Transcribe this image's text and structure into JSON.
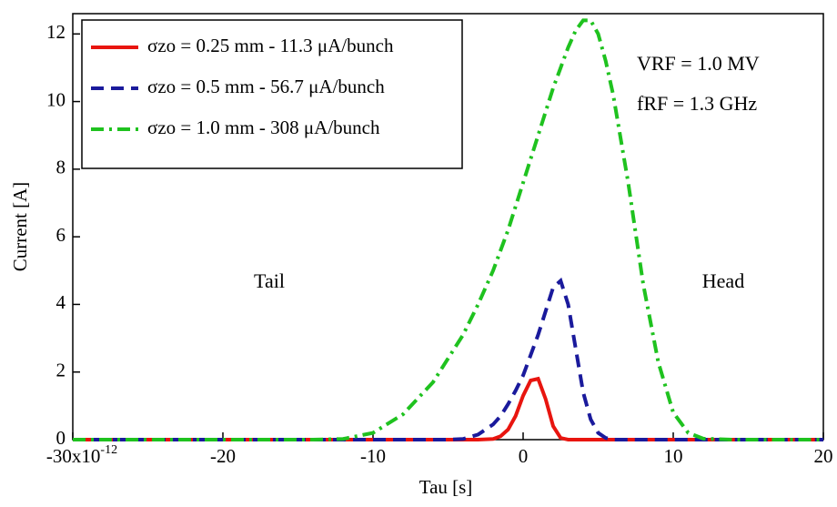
{
  "chart_data": {
    "type": "line",
    "xlabel": "Tau [s]",
    "ylabel": "Current [A]",
    "x": [
      -30,
      -14,
      -12,
      -10,
      -8,
      -6,
      -5,
      -4,
      -3,
      -2,
      -1.5,
      -1,
      -0.5,
      0,
      0.5,
      1,
      1.5,
      2,
      2.5,
      3,
      3.5,
      4,
      4.5,
      5,
      5.5,
      6,
      7,
      8,
      9,
      10,
      11,
      12,
      14,
      20
    ],
    "series": [
      {
        "name": "σzo = 0.25 mm - 11.3 μA/bunch",
        "color": "#e8150f",
        "style": "solid",
        "values": [
          0,
          0,
          0,
          0,
          0,
          0,
          0,
          0,
          0,
          0.02,
          0.1,
          0.3,
          0.7,
          1.3,
          1.75,
          1.8,
          1.2,
          0.4,
          0.05,
          0,
          0,
          0,
          0,
          0,
          0,
          0,
          0,
          0,
          0,
          0,
          0,
          0,
          0,
          0
        ]
      },
      {
        "name": "σzo = 0.5 mm - 56.7 μA/bunch",
        "color": "#1a1a9c",
        "style": "dashed",
        "values": [
          0,
          0,
          0,
          0,
          0,
          0,
          0,
          0.02,
          0.15,
          0.45,
          0.7,
          1.05,
          1.45,
          1.9,
          2.5,
          3.1,
          3.8,
          4.5,
          4.7,
          4.0,
          2.7,
          1.4,
          0.6,
          0.2,
          0.05,
          0,
          0,
          0,
          0,
          0,
          0,
          0,
          0,
          0
        ]
      },
      {
        "name": "σzo = 1.0 mm - 308 μA/bunch",
        "color": "#1fc21f",
        "style": "dashdot",
        "values": [
          0,
          0,
          0.02,
          0.2,
          0.75,
          1.7,
          2.4,
          3.1,
          4.0,
          5.0,
          5.6,
          6.2,
          6.9,
          7.6,
          8.3,
          9.0,
          9.7,
          10.4,
          11.0,
          11.6,
          12.1,
          12.4,
          12.4,
          12.0,
          11.2,
          10.2,
          7.6,
          4.6,
          2.3,
          0.8,
          0.2,
          0.03,
          0,
          0
        ]
      }
    ],
    "xlim": [
      -30,
      20
    ],
    "ylim": [
      0,
      12.6
    ],
    "xticks": [
      {
        "value": -30,
        "label": "-30x10"
      },
      -20,
      -10,
      0,
      10,
      20
    ],
    "xtick_exponent": "-12",
    "yticks": [
      0,
      2,
      4,
      6,
      8,
      10,
      12
    ],
    "annotations": [
      "Tail",
      "Head",
      "VRF = 1.0 MV",
      "fRF = 1.3 GHz"
    ],
    "legend": "upper left"
  }
}
